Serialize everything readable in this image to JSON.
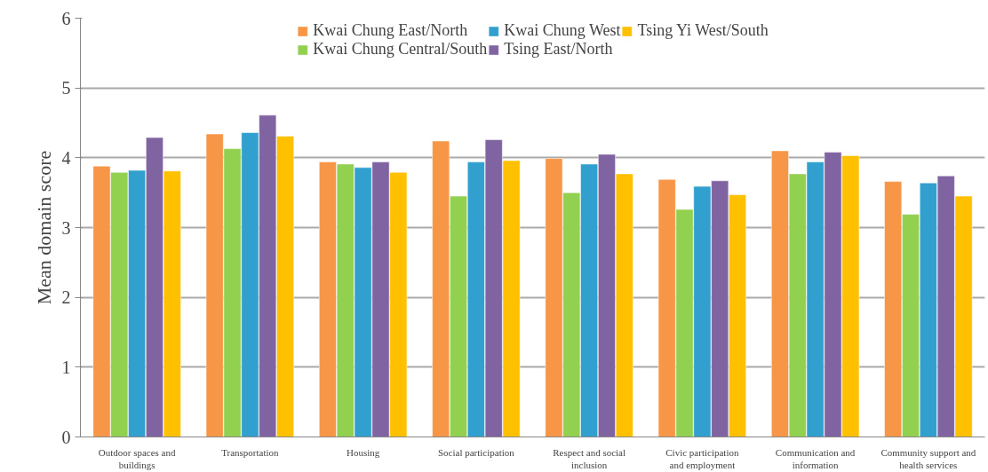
{
  "chart_data": {
    "type": "bar",
    "ylabel": "Mean domain score",
    "categories": [
      "Outdoor spaces and buildings",
      "Transportation",
      "Housing",
      "Social participation",
      "Respect and social inclusion",
      "Civic participation and employment",
      "Communication and information",
      "Community support and health services"
    ],
    "series": [
      {
        "name": "Kwai Chung East/North",
        "color": "#f79646",
        "values": [
          3.88,
          4.34,
          3.94,
          4.24,
          3.99,
          3.69,
          4.1,
          3.66
        ]
      },
      {
        "name": "Kwai Chung Central/South",
        "color": "#92d050",
        "values": [
          3.79,
          4.13,
          3.91,
          3.45,
          3.5,
          3.26,
          3.77,
          3.19
        ]
      },
      {
        "name": "Kwai Chung West",
        "color": "#31a0cf",
        "values": [
          3.82,
          4.36,
          3.86,
          3.94,
          3.91,
          3.59,
          3.94,
          3.64
        ]
      },
      {
        "name": "Tsing East/North",
        "color": "#8064a2",
        "values": [
          4.29,
          4.61,
          3.94,
          4.26,
          4.05,
          3.67,
          4.08,
          3.74
        ]
      },
      {
        "name": "Tsing Yi West/South",
        "color": "#ffc000",
        "values": [
          3.81,
          4.31,
          3.79,
          3.96,
          3.77,
          3.47,
          4.03,
          3.45
        ]
      }
    ],
    "ylim": [
      0,
      6
    ],
    "yticks": [
      0,
      1,
      2,
      3,
      4,
      5,
      6
    ],
    "grid": "y",
    "legend": "top"
  }
}
